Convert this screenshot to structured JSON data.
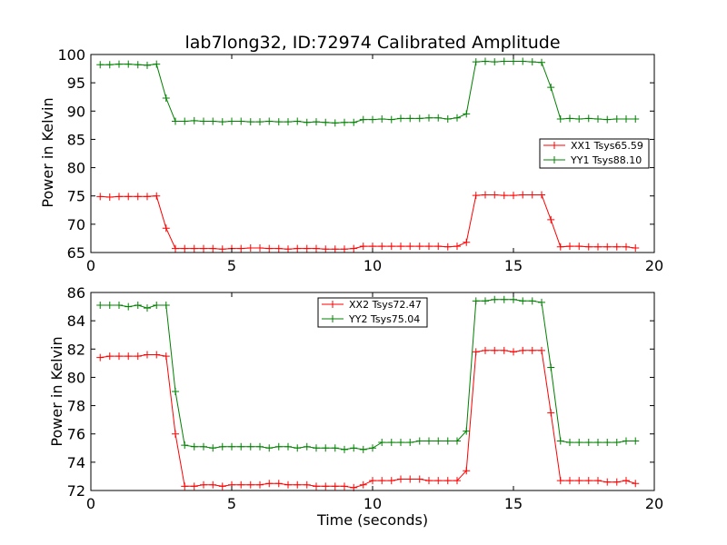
{
  "chart_data": [
    {
      "type": "line",
      "title": "lab7long32, ID:72974 Calibrated Amplitude",
      "xlabel": "",
      "ylabel": "Power in Kelvin",
      "xlim": [
        0,
        20
      ],
      "ylim": [
        65,
        100
      ],
      "xticks": [
        0,
        5,
        10,
        15,
        20
      ],
      "yticks": [
        65,
        70,
        75,
        80,
        85,
        90,
        95,
        100
      ],
      "legend_position": "center-right",
      "x": [
        0.33,
        0.67,
        1.0,
        1.33,
        1.67,
        2.0,
        2.33,
        2.67,
        3.0,
        3.33,
        3.67,
        4.0,
        4.33,
        4.67,
        5.0,
        5.33,
        5.67,
        6.0,
        6.33,
        6.67,
        7.0,
        7.33,
        7.67,
        8.0,
        8.33,
        8.67,
        9.0,
        9.33,
        9.67,
        10.0,
        10.33,
        10.67,
        11.0,
        11.33,
        11.67,
        12.0,
        12.33,
        12.67,
        13.0,
        13.33,
        13.67,
        14.0,
        14.33,
        14.67,
        15.0,
        15.33,
        15.67,
        16.0,
        16.33,
        16.67,
        17.0,
        17.33,
        17.67,
        18.0,
        18.33,
        18.67,
        19.0,
        19.33
      ],
      "series": [
        {
          "name": "XX1 Tsys65.59",
          "color": "#ff0000",
          "values": [
            74.9,
            74.8,
            74.9,
            74.9,
            74.9,
            74.9,
            75.0,
            69.3,
            65.7,
            65.7,
            65.7,
            65.7,
            65.7,
            65.6,
            65.7,
            65.7,
            65.8,
            65.8,
            65.7,
            65.7,
            65.6,
            65.7,
            65.7,
            65.7,
            65.6,
            65.6,
            65.6,
            65.7,
            66.1,
            66.1,
            66.1,
            66.1,
            66.1,
            66.1,
            66.1,
            66.1,
            66.1,
            66.0,
            66.1,
            66.8,
            75.1,
            75.2,
            75.2,
            75.1,
            75.1,
            75.2,
            75.2,
            75.2,
            70.8,
            66.0,
            66.1,
            66.1,
            66.0,
            66.0,
            66.0,
            66.0,
            66.0,
            65.8
          ]
        },
        {
          "name": "YY1 Tsys88.10",
          "color": "#008000",
          "values": [
            98.2,
            98.2,
            98.3,
            98.3,
            98.2,
            98.1,
            98.3,
            92.3,
            88.2,
            88.2,
            88.3,
            88.2,
            88.2,
            88.1,
            88.2,
            88.2,
            88.1,
            88.1,
            88.2,
            88.1,
            88.1,
            88.2,
            88.0,
            88.1,
            88.0,
            87.9,
            88.0,
            88.0,
            88.5,
            88.5,
            88.6,
            88.5,
            88.7,
            88.7,
            88.7,
            88.8,
            88.8,
            88.6,
            88.8,
            89.5,
            98.7,
            98.8,
            98.7,
            98.8,
            98.8,
            98.8,
            98.7,
            98.6,
            94.2,
            88.6,
            88.7,
            88.6,
            88.7,
            88.6,
            88.5,
            88.6,
            88.6,
            88.6
          ]
        }
      ]
    },
    {
      "type": "line",
      "title": "",
      "xlabel": "Time (seconds)",
      "ylabel": "Power in Kelvin",
      "xlim": [
        0,
        20
      ],
      "ylim": [
        72,
        86
      ],
      "xticks": [
        0,
        5,
        10,
        15,
        20
      ],
      "yticks": [
        72,
        74,
        76,
        78,
        80,
        82,
        84,
        86
      ],
      "legend_position": "top-center",
      "x": [
        0.33,
        0.67,
        1.0,
        1.33,
        1.67,
        2.0,
        2.33,
        2.67,
        3.0,
        3.33,
        3.67,
        4.0,
        4.33,
        4.67,
        5.0,
        5.33,
        5.67,
        6.0,
        6.33,
        6.67,
        7.0,
        7.33,
        7.67,
        8.0,
        8.33,
        8.67,
        9.0,
        9.33,
        9.67,
        10.0,
        10.33,
        10.67,
        11.0,
        11.33,
        11.67,
        12.0,
        12.33,
        12.67,
        13.0,
        13.33,
        13.67,
        14.0,
        14.33,
        14.67,
        15.0,
        15.33,
        15.67,
        16.0,
        16.33,
        16.67,
        17.0,
        17.33,
        17.67,
        18.0,
        18.33,
        18.67,
        19.0,
        19.33
      ],
      "series": [
        {
          "name": "XX2 Tsys72.47",
          "color": "#ff0000",
          "values": [
            81.4,
            81.5,
            81.5,
            81.5,
            81.5,
            81.6,
            81.6,
            81.5,
            76.0,
            72.3,
            72.3,
            72.4,
            72.4,
            72.3,
            72.4,
            72.4,
            72.4,
            72.4,
            72.5,
            72.5,
            72.4,
            72.4,
            72.4,
            72.3,
            72.3,
            72.3,
            72.3,
            72.2,
            72.4,
            72.7,
            72.7,
            72.7,
            72.8,
            72.8,
            72.8,
            72.7,
            72.7,
            72.7,
            72.7,
            73.4,
            81.8,
            81.9,
            81.9,
            81.9,
            81.8,
            81.9,
            81.9,
            81.9,
            77.5,
            72.7,
            72.7,
            72.7,
            72.7,
            72.7,
            72.6,
            72.6,
            72.7,
            72.5
          ]
        },
        {
          "name": "YY2 Tsys75.04",
          "color": "#008000",
          "values": [
            85.1,
            85.1,
            85.1,
            85.0,
            85.1,
            84.9,
            85.1,
            85.1,
            79.0,
            75.2,
            75.1,
            75.1,
            75.0,
            75.1,
            75.1,
            75.1,
            75.1,
            75.1,
            75.0,
            75.1,
            75.1,
            75.0,
            75.1,
            75.0,
            75.0,
            75.0,
            74.9,
            75.0,
            74.9,
            75.0,
            75.4,
            75.4,
            75.4,
            75.4,
            75.5,
            75.5,
            75.5,
            75.5,
            75.5,
            76.2,
            85.4,
            85.4,
            85.5,
            85.5,
            85.5,
            85.4,
            85.4,
            85.3,
            80.7,
            75.5,
            75.4,
            75.4,
            75.4,
            75.4,
            75.4,
            75.4,
            75.5,
            75.5
          ]
        }
      ]
    }
  ]
}
